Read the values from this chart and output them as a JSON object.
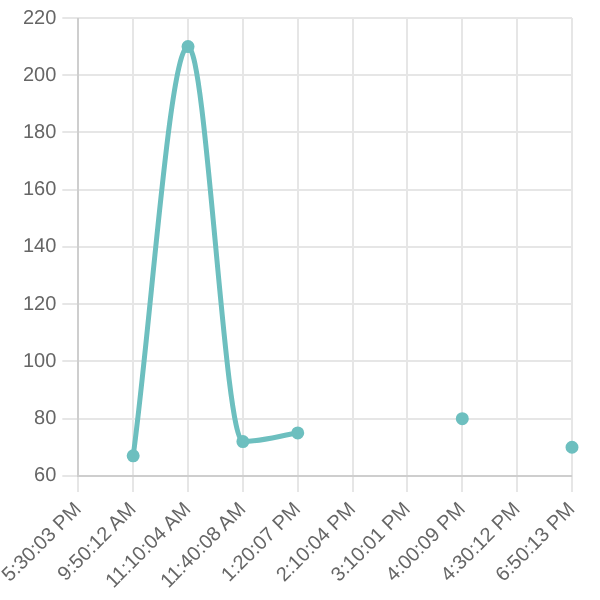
{
  "chart_data": {
    "type": "line",
    "categories": [
      "5:30:03 PM",
      "9:50:12 AM",
      "11:10:04 AM",
      "11:40:08 AM",
      "1:20:07 PM",
      "2:10:04 PM",
      "3:10:01 PM",
      "4:00:09 PM",
      "4:30:12 PM",
      "6:50:13 PM"
    ],
    "series": [
      {
        "color": "#6dbfbf",
        "values": [
          null,
          67,
          210,
          72,
          75,
          null,
          null,
          80,
          null,
          70
        ]
      }
    ],
    "ylim": [
      60,
      220
    ],
    "yticks": [
      60,
      80,
      100,
      120,
      140,
      160,
      180,
      200,
      220
    ],
    "grid": true,
    "marker": "circle",
    "legend": false
  }
}
